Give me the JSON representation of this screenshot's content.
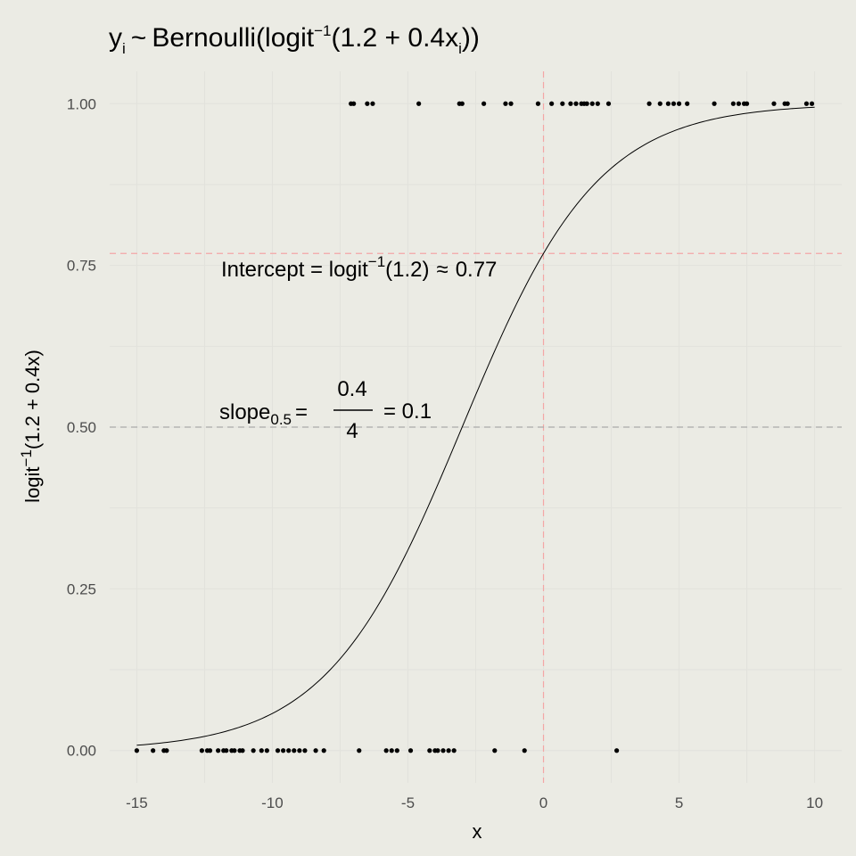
{
  "chart_data": {
    "type": "scatter",
    "title": {
      "y": "y",
      "y_sub": "i",
      "tilde": "~",
      "dist": "Bernoulli",
      "fn": "logit",
      "fn_sup": "−1",
      "expr": "1.2 + 0.4x",
      "expr_sub": "i"
    },
    "xlabel": "x",
    "ylabel": {
      "fn": "logit",
      "fn_sup": "−1",
      "expr": "(1.2 + 0.4x)"
    },
    "xlim": [
      -16,
      11
    ],
    "ylim": [
      -0.05,
      1.05
    ],
    "x_ticks": [
      -15,
      -10,
      -5,
      0,
      5,
      10
    ],
    "x_tick_labels": [
      "-15",
      "-10",
      "-5",
      "0",
      "5",
      "10"
    ],
    "y_ticks": [
      0,
      0.25,
      0.5,
      0.75,
      1
    ],
    "y_tick_labels": [
      "0.00",
      "0.25",
      "0.50",
      "0.75",
      "1.00"
    ],
    "grid": true,
    "curve": {
      "intercept": 1.2,
      "slope": 0.4,
      "x_range": [
        -15,
        10
      ]
    },
    "reference_lines": [
      {
        "orientation": "horizontal",
        "value": 0.7685,
        "color": "#f4a6a6"
      },
      {
        "orientation": "vertical",
        "value": 0,
        "color": "#f4a6a6"
      },
      {
        "orientation": "horizontal",
        "value": 0.5,
        "color": "#a9a9a9"
      }
    ],
    "annotations": {
      "intercept": {
        "prefix": "Intercept = logit",
        "sup": "−1",
        "arg": "(1.2)",
        "approx": "≈",
        "value": "0.77"
      },
      "slope": {
        "name": "slope",
        "sub": "0.5",
        "eq": "=",
        "numerator": "0.4",
        "denominator": "4",
        "result": "= 0.1"
      }
    },
    "points_y1": [
      -7.1,
      -7.0,
      -6.5,
      -6.3,
      -4.6,
      -3.1,
      -3.0,
      -2.2,
      -1.4,
      -1.2,
      -0.2,
      0.3,
      0.7,
      1.0,
      1.2,
      1.4,
      1.5,
      1.6,
      1.8,
      2.0,
      2.4,
      3.9,
      4.3,
      4.6,
      4.8,
      5.0,
      5.3,
      6.3,
      7.0,
      7.2,
      7.4,
      7.5,
      8.5,
      8.9,
      9.0,
      9.7,
      9.9
    ],
    "points_y0": [
      -15.0,
      -14.4,
      -14.0,
      -13.9,
      -12.6,
      -12.4,
      -12.3,
      -12.0,
      -11.8,
      -11.7,
      -11.5,
      -11.4,
      -11.2,
      -11.1,
      -10.7,
      -10.4,
      -10.2,
      -9.8,
      -9.6,
      -9.4,
      -9.2,
      -9.0,
      -8.8,
      -8.4,
      -8.1,
      -6.8,
      -5.8,
      -5.6,
      -5.4,
      -4.9,
      -4.2,
      -4.0,
      -3.9,
      -3.7,
      -3.5,
      -3.3,
      -1.8,
      -0.7,
      2.7
    ]
  }
}
